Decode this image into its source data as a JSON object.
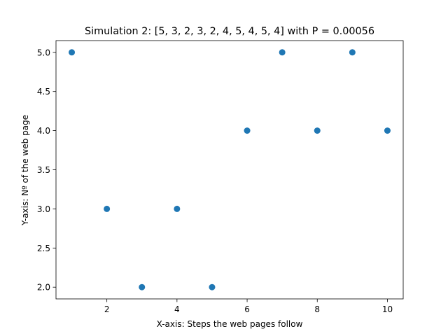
{
  "chart_data": {
    "type": "scatter",
    "title": "Simulation 2: [5, 3, 2, 3, 2, 4, 5, 4, 5, 4] with P = 0.00056",
    "xlabel": "X-axis: Steps the web pages follow",
    "ylabel": "Y-axis: Nº of the web page",
    "x": [
      1,
      2,
      3,
      4,
      5,
      6,
      7,
      8,
      9,
      10
    ],
    "y": [
      5,
      3,
      2,
      3,
      2,
      4,
      5,
      4,
      5,
      4
    ],
    "xlim": [
      0.55,
      10.45
    ],
    "ylim": [
      1.85,
      5.15
    ],
    "xticks": [
      2,
      4,
      6,
      8,
      10
    ],
    "xtick_labels": [
      "2",
      "4",
      "6",
      "8",
      "10"
    ],
    "yticks": [
      2.0,
      2.5,
      3.0,
      3.5,
      4.0,
      4.5,
      5.0
    ],
    "ytick_labels": [
      "2.0",
      "2.5",
      "3.0",
      "3.5",
      "4.0",
      "4.5",
      "5.0"
    ],
    "grid": false,
    "marker_color": "#1f77b4"
  }
}
